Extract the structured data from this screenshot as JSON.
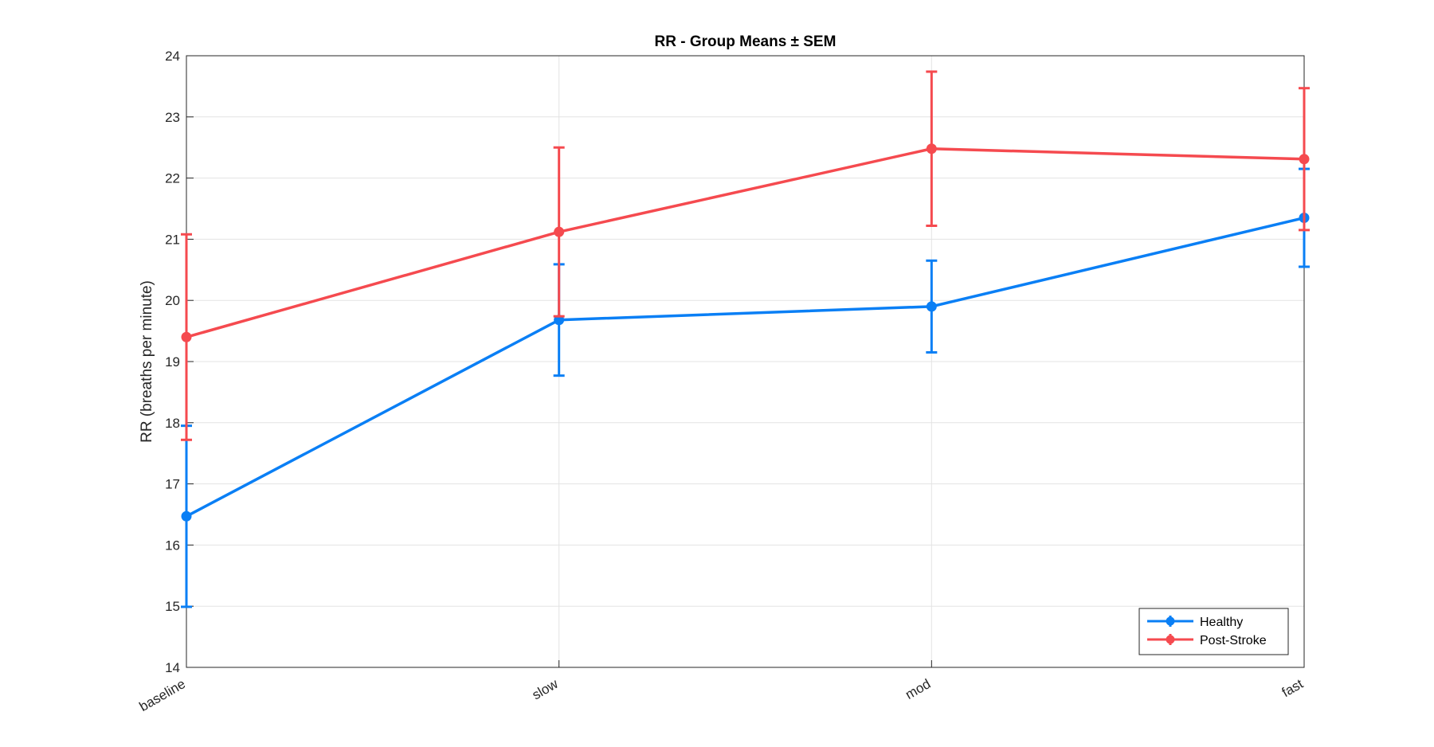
{
  "chart_data": {
    "type": "line",
    "title": "RR - Group Means ± SEM",
    "xlabel": "",
    "ylabel": "RR (breaths per minute)",
    "categories": [
      "baseline",
      "slow",
      "mod",
      "fast"
    ],
    "ylim": [
      14,
      24
    ],
    "yticks": [
      14,
      15,
      16,
      17,
      18,
      19,
      20,
      21,
      22,
      23,
      24
    ],
    "grid": true,
    "legend_position": "bottom-right",
    "series": [
      {
        "name": "Healthy",
        "color": "#0a7ff5",
        "values": [
          16.47,
          19.68,
          19.9,
          21.35
        ],
        "errors": [
          1.48,
          0.91,
          0.75,
          0.8
        ]
      },
      {
        "name": "Post-Stroke",
        "color": "#f54a4f",
        "values": [
          19.4,
          21.12,
          22.48,
          22.31
        ],
        "errors": [
          1.68,
          1.38,
          1.26,
          1.16
        ]
      }
    ]
  }
}
